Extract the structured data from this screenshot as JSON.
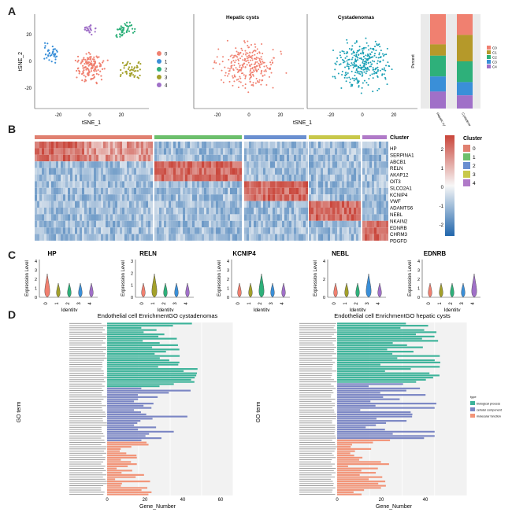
{
  "panels": {
    "a": "A",
    "b": "B",
    "c": "C",
    "d": "D"
  },
  "tsne": {
    "xlabel": "tSNE_1",
    "ylabel": "tSNE_2",
    "xticks": [
      "-20",
      "0",
      "20"
    ],
    "yticks": [
      "20",
      "0",
      "-20"
    ],
    "cluster_labels": [
      "0",
      "1",
      "2",
      "3",
      "4"
    ],
    "hepatic_title": "Hepatic cysts",
    "cyst_title": "Cystadenomas",
    "cluster_colors": [
      "#f08070",
      "#3a8fd8",
      "#2eb07a",
      "#a3a02a",
      "#a070c8"
    ],
    "hepatic_color": "#f08070",
    "cyst_color": "#1aa0b5"
  },
  "stacked_bar": {
    "ylabel": "Percent",
    "categories": [
      "Hepatic cysts",
      "Cystadenomas"
    ],
    "legend": [
      "C0",
      "C1",
      "C2",
      "C3",
      "C4"
    ]
  },
  "heatmap": {
    "genes": [
      "HP",
      "SERPINA1",
      "ABCB1",
      "RELN",
      "AKAP12",
      "OIT3",
      "SLCO2A1",
      "KCNIP4",
      "VWF",
      "ADAMTS6",
      "NEBL",
      "NKAIN2",
      "EDNRB",
      "CHRM3",
      "PDGFD"
    ],
    "cluster_header": "Cluster",
    "legend_title": "Cluster",
    "legend_items": [
      "0",
      "1",
      "2",
      "3",
      "4"
    ],
    "scale_ticks": [
      "2",
      "1",
      "0",
      "-1",
      "-2"
    ]
  },
  "violin": {
    "ylabel": "Expression Level",
    "xlabel": "Identity",
    "xticks": [
      "0",
      "1",
      "2",
      "3",
      "4"
    ],
    "genes": [
      {
        "name": "HP",
        "yticks": [
          "4",
          "3",
          "2",
          "1",
          "0"
        ]
      },
      {
        "name": "RELN",
        "yticks": [
          "3",
          "2",
          "1",
          "0"
        ]
      },
      {
        "name": "KCNIP4",
        "yticks": [
          "4",
          "3",
          "2",
          "1",
          "0"
        ]
      },
      {
        "name": "NEBL",
        "yticks": [
          "4",
          "2",
          "0"
        ]
      },
      {
        "name": "EDNRB",
        "yticks": [
          "4",
          "3",
          "2",
          "1",
          "0"
        ]
      }
    ]
  },
  "go": {
    "left_title": "Endothelial cell EnrichmentGO cystadenomas",
    "right_title": "Endothelial cell EnrichmentGO hepatic cysts",
    "ylabel": "GO term",
    "xlabel": "Gene_Number",
    "left_xticks": [
      "0",
      "20",
      "40",
      "60"
    ],
    "right_xticks": [
      "0",
      "20",
      "40"
    ],
    "legend_title": "type",
    "legend_items": [
      "biological process",
      "cellular component",
      "molecular function"
    ],
    "colors": [
      "#3db39a",
      "#7b86c4",
      "#f29478"
    ]
  }
}
